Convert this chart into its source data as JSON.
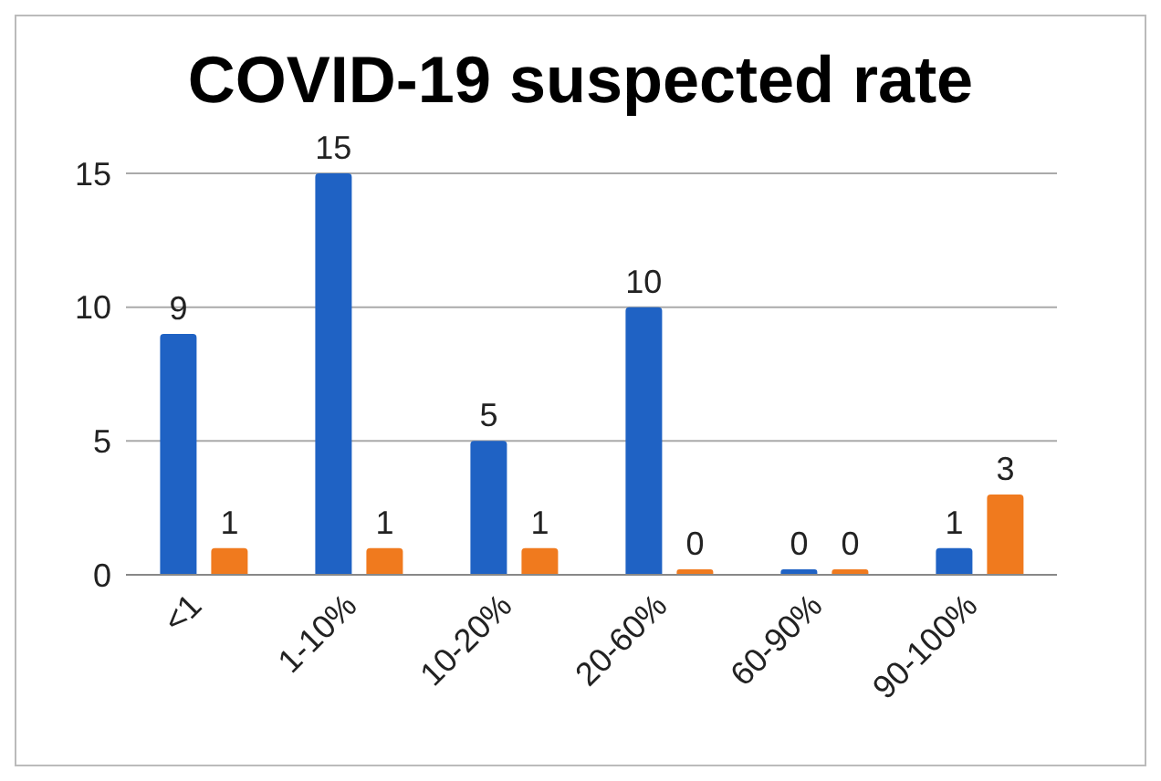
{
  "chart_data": {
    "type": "bar",
    "title": "COVID-19 suspected rate",
    "categories": [
      "<1",
      "1-10%",
      "10-20%",
      "20-60%",
      "60-90%",
      "90-100%"
    ],
    "series": [
      {
        "color": "#1f62c4",
        "values": [
          9,
          15,
          5,
          10,
          0,
          1
        ]
      },
      {
        "color": "#f07a1e",
        "values": [
          1,
          1,
          1,
          0,
          0,
          3
        ]
      }
    ],
    "ylim": [
      0,
      15
    ],
    "yticks": [
      0,
      5,
      10,
      15
    ],
    "grid": "y",
    "data_labels": true
  }
}
